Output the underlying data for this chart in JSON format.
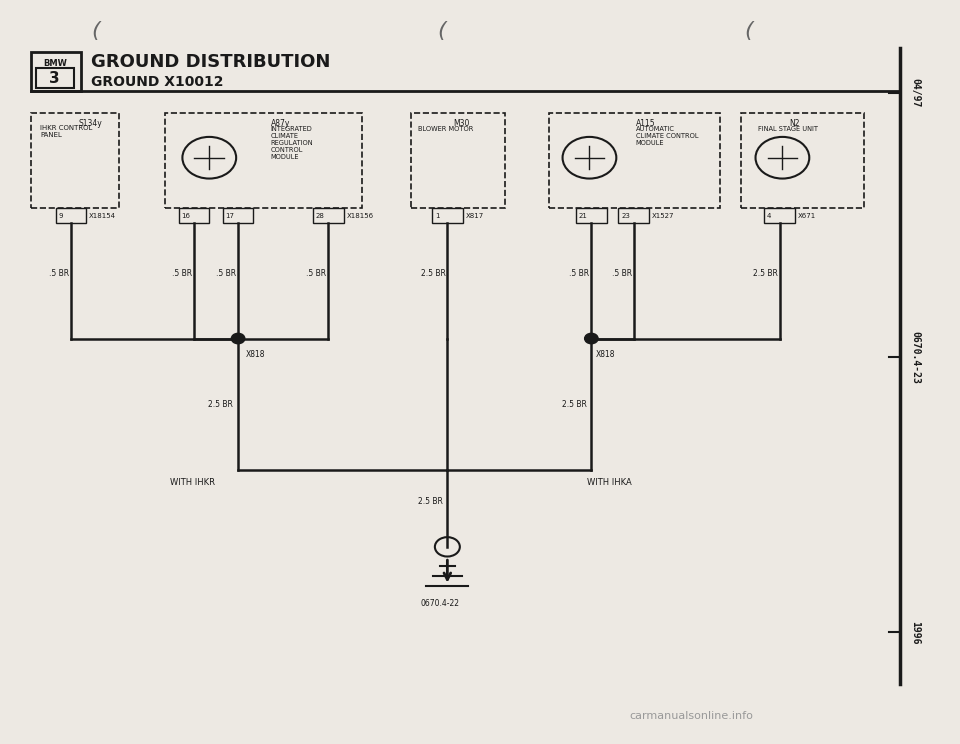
{
  "title1": "GROUND DISTRIBUTION",
  "title2": "GROUND X10012",
  "bg_color": "#ede9e3",
  "line_color": "#1a1a1a",
  "right_bar_labels": [
    "04/97",
    "0670.4-23",
    "1996"
  ],
  "page_ref_bottom": "carmanualsonline.info",
  "ground_label": "0670.4-22",
  "ihkr_label": "WITH IHKR",
  "ihka_label": "WITH IHKA"
}
